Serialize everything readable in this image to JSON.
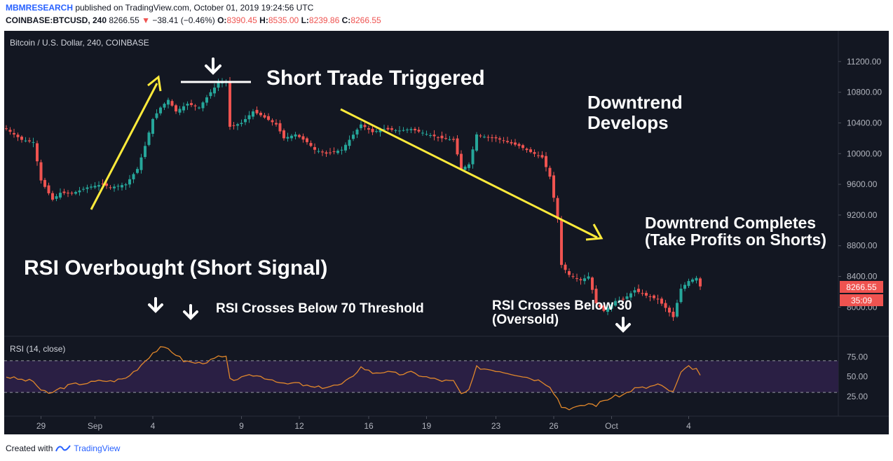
{
  "header": {
    "brand": "MBMRESEARCH",
    "published": " published on TradingView.com, October 01, 2019 19:24:56 UTC",
    "symbol_label": "COINBASE:BTCUSD, 240",
    "last": "8266.55",
    "change_arrow": "▼",
    "change": "−38.41 (−0.46%)",
    "o_label": "O:",
    "o_value": "8390.45",
    "h_label": "H:",
    "h_value": "8535.00",
    "l_label": "L:",
    "l_value": "8239.86",
    "c_label": "C:",
    "c_value": "8266.55"
  },
  "footer": {
    "created_with": "Created with",
    "tradingview": "TradingView"
  },
  "colors": {
    "background": "#131722",
    "up": "#26a69a",
    "down": "#ef5350",
    "annotation_arrow": "#ffeb3b",
    "rsi_line": "#e0872b",
    "rsi_band": "#2a1f44"
  },
  "chart_data": [
    {
      "type": "candlestick",
      "title": "Bitcoin / U.S. Dollar, 240, COINBASE",
      "price_axis_ticks": [
        "11200.00",
        "10800.00",
        "10400.00",
        "10000.00",
        "9600.00",
        "9200.00",
        "8800.00",
        "8400.00",
        "8000.00"
      ],
      "ylim": [
        7620,
        11600
      ],
      "last_price_label": "8266.55",
      "countdown_label": "35:09",
      "time_axis_ticks": [
        "29",
        "Sep",
        "4",
        "9",
        "12",
        "16",
        "19",
        "23",
        "26",
        "Oct",
        "4"
      ],
      "close_path": [
        [
          0,
          10320
        ],
        [
          4,
          10180
        ],
        [
          7,
          10150
        ],
        [
          9,
          9650
        ],
        [
          12,
          9400
        ],
        [
          14,
          9490
        ],
        [
          17,
          9480
        ],
        [
          21,
          9560
        ],
        [
          25,
          9600
        ],
        [
          27,
          9560
        ],
        [
          31,
          9600
        ],
        [
          34,
          9800
        ],
        [
          36,
          10100
        ],
        [
          38,
          10450
        ],
        [
          40,
          10600
        ],
        [
          42,
          10700
        ],
        [
          44,
          10550
        ],
        [
          47,
          10650
        ],
        [
          50,
          10600
        ],
        [
          53,
          10800
        ],
        [
          55,
          10920
        ],
        [
          57,
          10930
        ],
        [
          58,
          10350
        ],
        [
          61,
          10400
        ],
        [
          64,
          10550
        ],
        [
          66,
          10500
        ],
        [
          70,
          10380
        ],
        [
          72,
          10200
        ],
        [
          75,
          10250
        ],
        [
          78,
          10150
        ],
        [
          80,
          10050
        ],
        [
          83,
          10000
        ],
        [
          87,
          10050
        ],
        [
          89,
          10180
        ],
        [
          92,
          10380
        ],
        [
          95,
          10280
        ],
        [
          98,
          10320
        ],
        [
          102,
          10300
        ],
        [
          105,
          10320
        ],
        [
          110,
          10240
        ],
        [
          113,
          10200
        ],
        [
          116,
          10180
        ],
        [
          118,
          9800
        ],
        [
          120,
          9860
        ],
        [
          122,
          10250
        ],
        [
          124,
          10220
        ],
        [
          127,
          10200
        ],
        [
          130,
          10150
        ],
        [
          133,
          10100
        ],
        [
          136,
          10020
        ],
        [
          139,
          9950
        ],
        [
          141,
          9700
        ],
        [
          143,
          9150
        ],
        [
          144,
          8550
        ],
        [
          146,
          8420
        ],
        [
          149,
          8350
        ],
        [
          151,
          8400
        ],
        [
          153,
          8050
        ],
        [
          155,
          7950
        ],
        [
          158,
          8080
        ],
        [
          160,
          8100
        ],
        [
          163,
          8220
        ],
        [
          166,
          8150
        ],
        [
          169,
          8100
        ],
        [
          171,
          7990
        ],
        [
          173,
          7870
        ],
        [
          175,
          8240
        ],
        [
          177,
          8340
        ],
        [
          179,
          8380
        ],
        [
          180,
          8270
        ]
      ],
      "annotations": [
        "Short Trade Triggered",
        "Downtrend Develops",
        "Downtrend Completes (Take Profits on Shorts)",
        "RSI Overbought (Short Signal)",
        "RSI Crosses Below 70 Threshold",
        "RSI Crosses Below 30 (Oversold)"
      ],
      "annotation_lines": [
        "Short Trade Triggered",
        "Downtrend",
        "Develops",
        "Downtrend Completes",
        "(Take Profits on Shorts)",
        "RSI Overbought (Short Signal)",
        "RSI Crosses Below 70 Threshold",
        "RSI Crosses Below 30",
        "(Oversold)"
      ]
    },
    {
      "type": "line",
      "title": "RSI (14, close)",
      "ylim": [
        0,
        100
      ],
      "levels": [
        70,
        30
      ],
      "axis_ticks": [
        "75.00",
        "50.00",
        "25.00"
      ],
      "tick_values": [
        75,
        50,
        25
      ],
      "values_path": [
        [
          0,
          50
        ],
        [
          4,
          46
        ],
        [
          7,
          44
        ],
        [
          9,
          33
        ],
        [
          11,
          28
        ],
        [
          14,
          35
        ],
        [
          17,
          40
        ],
        [
          21,
          42
        ],
        [
          25,
          45
        ],
        [
          27,
          44
        ],
        [
          31,
          48
        ],
        [
          34,
          60
        ],
        [
          36,
          70
        ],
        [
          38,
          80
        ],
        [
          40,
          86
        ],
        [
          42,
          85
        ],
        [
          44,
          78
        ],
        [
          46,
          70
        ],
        [
          48,
          68
        ],
        [
          50,
          67
        ],
        [
          53,
          70
        ],
        [
          55,
          75
        ],
        [
          57,
          74
        ],
        [
          58,
          46
        ],
        [
          61,
          48
        ],
        [
          64,
          52
        ],
        [
          66,
          50
        ],
        [
          70,
          45
        ],
        [
          72,
          40
        ],
        [
          75,
          42
        ],
        [
          78,
          38
        ],
        [
          80,
          36
        ],
        [
          83,
          37
        ],
        [
          87,
          40
        ],
        [
          89,
          47
        ],
        [
          92,
          62
        ],
        [
          95,
          55
        ],
        [
          98,
          56
        ],
        [
          102,
          53
        ],
        [
          105,
          55
        ],
        [
          110,
          48
        ],
        [
          113,
          45
        ],
        [
          116,
          44
        ],
        [
          118,
          28
        ],
        [
          120,
          32
        ],
        [
          122,
          62
        ],
        [
          124,
          60
        ],
        [
          127,
          58
        ],
        [
          130,
          55
        ],
        [
          133,
          52
        ],
        [
          136,
          48
        ],
        [
          139,
          44
        ],
        [
          141,
          38
        ],
        [
          143,
          22
        ],
        [
          144,
          12
        ],
        [
          146,
          10
        ],
        [
          149,
          12
        ],
        [
          151,
          16
        ],
        [
          153,
          14
        ],
        [
          155,
          20
        ],
        [
          158,
          25
        ],
        [
          160,
          27
        ],
        [
          163,
          35
        ],
        [
          166,
          36
        ],
        [
          169,
          40
        ],
        [
          171,
          35
        ],
        [
          173,
          30
        ],
        [
          175,
          55
        ],
        [
          177,
          62
        ],
        [
          179,
          60
        ],
        [
          180,
          50
        ]
      ]
    }
  ]
}
